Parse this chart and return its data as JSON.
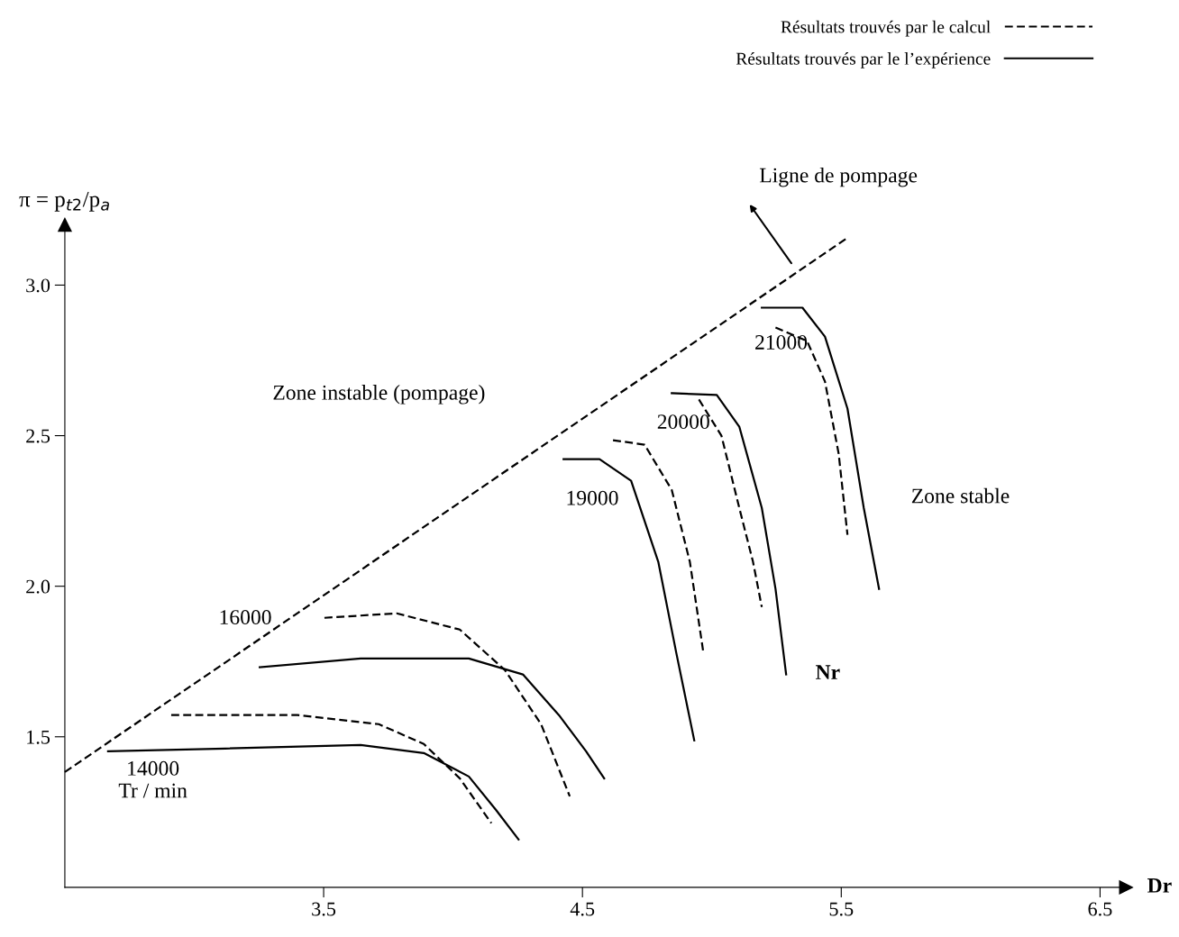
{
  "chart_data": {
    "type": "line",
    "xlabel": "Dr",
    "ylabel": "π = p$_{t2}$/p$_{a}$",
    "xlim": [
      2.5,
      6.6
    ],
    "ylim": [
      1.0,
      3.2
    ],
    "xticks": [
      3.5,
      4.5,
      5.5,
      6.5
    ],
    "yticks": [
      {
        "value": 1.5,
        "label": "1.5"
      },
      {
        "value": 2,
        "label": "2.0"
      },
      {
        "value": 2.5,
        "label": "2.5"
      },
      {
        "value": 3,
        "label": "3.0"
      }
    ],
    "grid": false,
    "legend": "top right",
    "tick_labels": true,
    "series": [
      {
        "color": "#000000",
        "line_style": "dashed",
        "x": [
          2.5,
          5.517
        ],
        "values": [
          1.383,
          3.153
        ]
      },
      {
        "name": "Résultats trouvés par le calcul",
        "color": "#000000",
        "line_style": "dashed",
        "x": [
          2.911,
          3.399,
          3.713,
          3.887,
          4.026,
          4.148
        ],
        "values": [
          1.572,
          1.572,
          1.542,
          1.476,
          1.362,
          1.213
        ]
      },
      {
        "name": "Résultats trouvés par le l’expérience",
        "color": "#000000",
        "line_style": "solid",
        "x": [
          2.667,
          3.12,
          3.643,
          3.887,
          4.061,
          4.166,
          4.253
        ],
        "values": [
          1.452,
          1.461,
          1.473,
          1.446,
          1.368,
          1.257,
          1.159
        ]
      },
      {
        "color": "#000000",
        "line_style": "dashed",
        "x": [
          3.503,
          3.782,
          4.026,
          4.2,
          4.34,
          4.451
        ],
        "values": [
          1.895,
          1.91,
          1.856,
          1.722,
          1.542,
          1.302
        ]
      },
      {
        "color": "#000000",
        "line_style": "solid",
        "x": [
          3.253,
          3.643,
          4.061,
          4.27,
          4.409,
          4.514,
          4.584
        ],
        "values": [
          1.731,
          1.76,
          1.76,
          1.707,
          1.572,
          1.452,
          1.362
        ]
      },
      {
        "color": "#000000",
        "line_style": "dashed",
        "x": [
          4.618,
          4.74,
          4.845,
          4.915,
          4.967
        ],
        "values": [
          2.485,
          2.47,
          2.32,
          2.081,
          1.781
        ]
      },
      {
        "color": "#000000",
        "line_style": "solid",
        "x": [
          4.427,
          4.566,
          4.688,
          4.793,
          4.862,
          4.932
        ],
        "values": [
          2.422,
          2.422,
          2.35,
          2.081,
          1.781,
          1.488
        ]
      },
      {
        "color": "#000000",
        "line_style": "dashed",
        "x": [
          4.95,
          5.037,
          5.106,
          5.159,
          5.193
        ],
        "values": [
          2.62,
          2.5,
          2.26,
          2.081,
          1.931
        ]
      },
      {
        "color": "#000000",
        "line_style": "solid",
        "x": [
          4.845,
          5.019,
          5.106,
          5.193,
          5.246,
          5.287
        ],
        "values": [
          2.641,
          2.635,
          2.53,
          2.26,
          1.991,
          1.707
        ]
      },
      {
        "color": "#000000",
        "line_style": "dashed",
        "x": [
          5.246,
          5.368,
          5.437,
          5.49,
          5.524
        ],
        "values": [
          2.859,
          2.814,
          2.68,
          2.44,
          2.171
        ]
      },
      {
        "color": "#000000",
        "line_style": "solid",
        "x": [
          5.193,
          5.35,
          5.437,
          5.524,
          5.587,
          5.646
        ],
        "values": [
          2.925,
          2.925,
          2.829,
          2.59,
          2.26,
          1.991
        ]
      }
    ],
    "annotations": [
      "Zone instable (pompage)",
      "Zone stable",
      "Ligne de pompage",
      "Nr",
      "14000\nTr / min",
      "16000",
      "19000",
      "20000",
      "21000"
    ]
  }
}
